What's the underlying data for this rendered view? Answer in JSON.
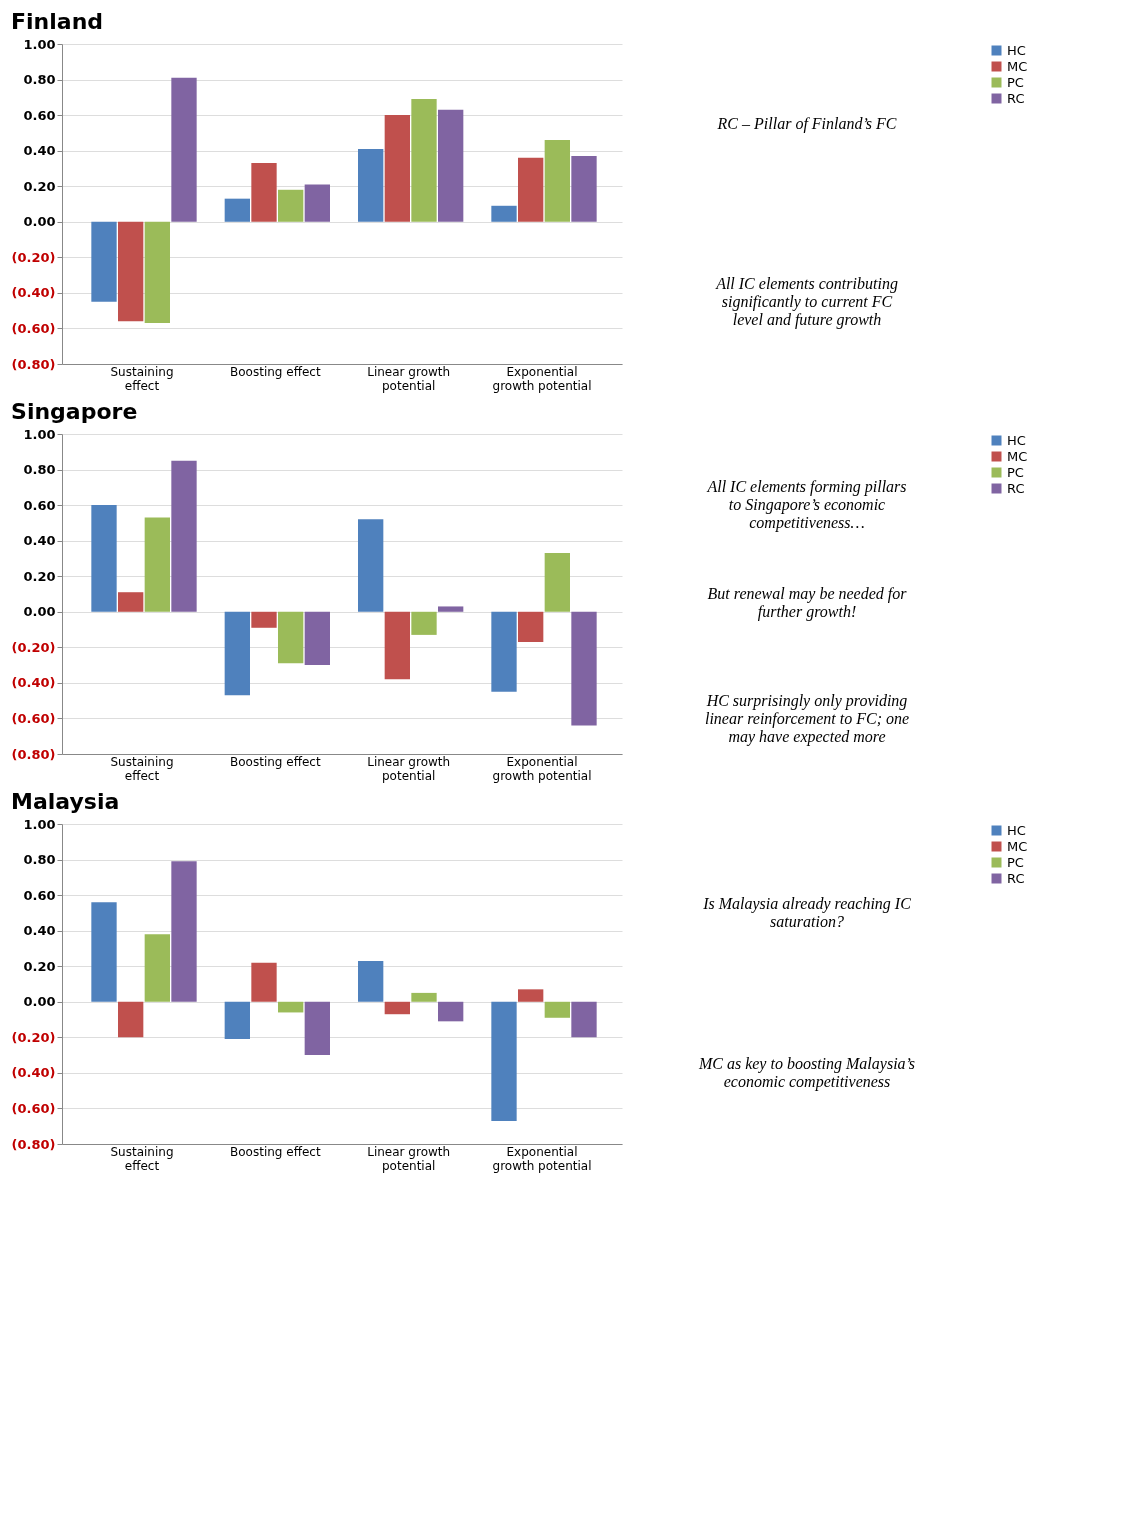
{
  "chart_data": [
    {
      "type": "bar",
      "title": "Finland",
      "categories": [
        "Sustaining effect",
        "Boosting effect",
        "Linear growth potential",
        "Exponential growth potential"
      ],
      "series": [
        {
          "name": "HC",
          "color": "#4f81bd",
          "values": [
            -0.45,
            0.13,
            0.41,
            0.09
          ]
        },
        {
          "name": "MC",
          "color": "#c0504d",
          "values": [
            -0.56,
            0.33,
            0.6,
            0.36
          ]
        },
        {
          "name": "PC",
          "color": "#9bbb59",
          "values": [
            -0.57,
            0.18,
            0.69,
            0.46
          ]
        },
        {
          "name": "RC",
          "color": "#8064a2",
          "values": [
            0.81,
            0.21,
            0.63,
            0.37
          ]
        }
      ],
      "ylim": [
        -0.8,
        1.0
      ],
      "yticks": [
        {
          "value": -0.8,
          "label": "(0.80)"
        },
        {
          "value": -0.6,
          "label": "(0.60)"
        },
        {
          "value": -0.4,
          "label": "(0.40)"
        },
        {
          "value": -0.2,
          "label": "(0.20)"
        },
        {
          "value": 0,
          "label": "0.00"
        },
        {
          "value": 0.2,
          "label": "0.20"
        },
        {
          "value": 0.4,
          "label": "0.40"
        },
        {
          "value": 0.6,
          "label": "0.60"
        },
        {
          "value": 0.8,
          "label": "0.80"
        },
        {
          "value": 1.0,
          "label": "1.00"
        }
      ],
      "grid": "y",
      "legend": "right",
      "annotations": [
        "RC – Pillar of Finland’s FC",
        "All IC elements contributing significantly to current FC level and future growth"
      ]
    },
    {
      "type": "bar",
      "title": "Singapore",
      "categories": [
        "Sustaining effect",
        "Boosting effect",
        "Linear growth potential",
        "Exponential growth potential"
      ],
      "series": [
        {
          "name": "HC",
          "color": "#4f81bd",
          "values": [
            0.6,
            -0.47,
            0.52,
            -0.45
          ]
        },
        {
          "name": "MC",
          "color": "#c0504d",
          "values": [
            0.11,
            -0.09,
            -0.38,
            -0.17
          ]
        },
        {
          "name": "PC",
          "color": "#9bbb59",
          "values": [
            0.53,
            -0.29,
            -0.13,
            0.33
          ]
        },
        {
          "name": "RC",
          "color": "#8064a2",
          "values": [
            0.85,
            -0.3,
            0.03,
            -0.64
          ]
        }
      ],
      "ylim": [
        -0.8,
        1.0
      ],
      "yticks": [
        {
          "value": -0.8,
          "label": "(0.80)"
        },
        {
          "value": -0.6,
          "label": "(0.60)"
        },
        {
          "value": -0.4,
          "label": "(0.40)"
        },
        {
          "value": -0.2,
          "label": "(0.20)"
        },
        {
          "value": 0,
          "label": "0.00"
        },
        {
          "value": 0.2,
          "label": "0.20"
        },
        {
          "value": 0.4,
          "label": "0.40"
        },
        {
          "value": 0.6,
          "label": "0.60"
        },
        {
          "value": 0.8,
          "label": "0.80"
        },
        {
          "value": 1.0,
          "label": "1.00"
        }
      ],
      "grid": "y",
      "legend": "right",
      "annotations": [
        "All IC elements forming pillars to Singapore’s economic competitiveness…",
        "But renewal may be needed for further growth!",
        "HC surprisingly only providing linear reinforcement to FC; one may have expected more"
      ]
    },
    {
      "type": "bar",
      "title": "Malaysia",
      "categories": [
        "Sustaining effect",
        "Boosting effect",
        "Linear growth potential",
        "Exponential growth potential"
      ],
      "series": [
        {
          "name": "HC",
          "color": "#4f81bd",
          "values": [
            0.56,
            -0.21,
            0.23,
            -0.67
          ]
        },
        {
          "name": "MC",
          "color": "#c0504d",
          "values": [
            -0.2,
            0.22,
            -0.07,
            0.07
          ]
        },
        {
          "name": "PC",
          "color": "#9bbb59",
          "values": [
            0.38,
            -0.06,
            0.05,
            -0.09
          ]
        },
        {
          "name": "RC",
          "color": "#8064a2",
          "values": [
            0.79,
            -0.3,
            -0.11,
            -0.2
          ]
        }
      ],
      "ylim": [
        -0.8,
        1.0
      ],
      "yticks": [
        {
          "value": -0.8,
          "label": "(0.80)"
        },
        {
          "value": -0.6,
          "label": "(0.60)"
        },
        {
          "value": -0.4,
          "label": "(0.40)"
        },
        {
          "value": -0.2,
          "label": "(0.20)"
        },
        {
          "value": 0,
          "label": "0.00"
        },
        {
          "value": 0.2,
          "label": "0.20"
        },
        {
          "value": 0.4,
          "label": "0.40"
        },
        {
          "value": 0.6,
          "label": "0.60"
        },
        {
          "value": 0.8,
          "label": "0.80"
        },
        {
          "value": 1.0,
          "label": "1.00"
        }
      ],
      "grid": "y",
      "legend": "right",
      "annotations": [
        "Is Malaysia already reaching IC saturation?",
        "MC as key to boosting Malaysia’s economic competitiveness"
      ]
    }
  ]
}
